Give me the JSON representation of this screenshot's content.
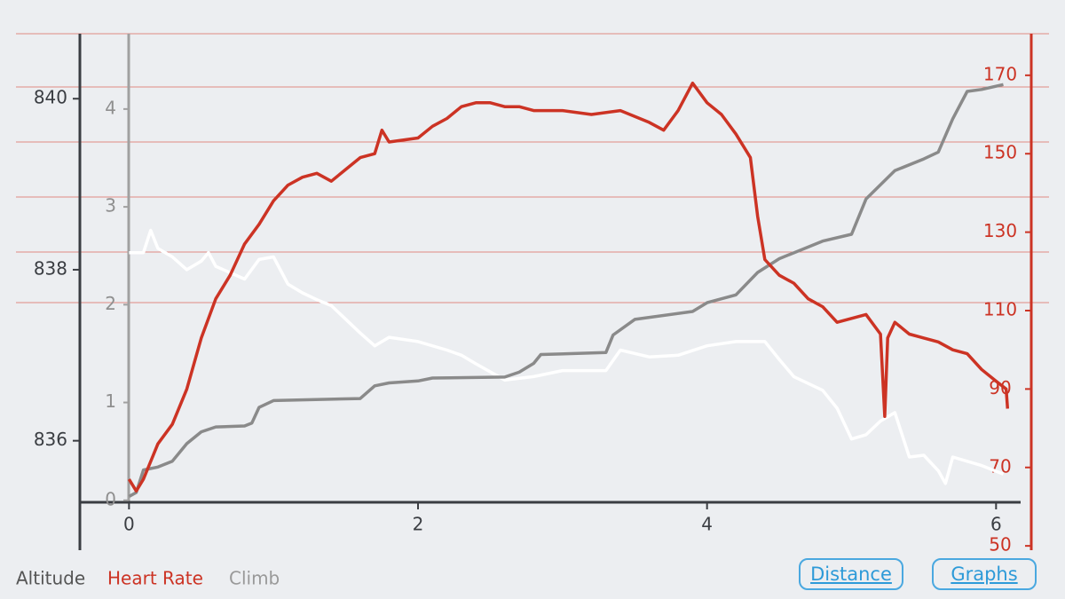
{
  "chart_data": {
    "type": "line",
    "xlim": [
      -0.34,
      6.17
    ],
    "xticks": [
      0,
      2,
      4,
      6
    ],
    "ylim": [
      834.72,
      840.76
    ],
    "yticks": [
      836,
      838,
      840
    ],
    "y2lim": [
      48.9,
      180.6
    ],
    "y2ticks": [
      50,
      70,
      90,
      110,
      130,
      150,
      170
    ],
    "y3lim": [
      -0.51,
      4.77
    ],
    "y3ticks": [
      0,
      1,
      2,
      3,
      4
    ],
    "series": [
      {
        "name": "Altitude",
        "color": "#ffffff",
        "axis": "y",
        "x": [
          0,
          0.1,
          0.15,
          0.2,
          0.3,
          0.4,
          0.5,
          0.55,
          0.6,
          0.8,
          0.9,
          1.0,
          1.1,
          1.2,
          1.3,
          1.4,
          1.5,
          1.6,
          1.7,
          1.8,
          2.0,
          2.2,
          2.3,
          2.4,
          2.6,
          2.8,
          3.0,
          3.3,
          3.4,
          3.6,
          3.8,
          4.0,
          4.2,
          4.4,
          4.5,
          4.6,
          4.8,
          4.9,
          5.0,
          5.1,
          5.2,
          5.3,
          5.4,
          5.5,
          5.6,
          5.65,
          5.7,
          5.8,
          5.9,
          6.05
        ],
        "values": [
          838.2,
          838.2,
          838.46,
          838.25,
          838.15,
          838.0,
          838.1,
          838.2,
          838.04,
          837.89,
          838.12,
          838.15,
          837.83,
          837.73,
          837.65,
          837.58,
          837.42,
          837.26,
          837.11,
          837.21,
          837.16,
          837.06,
          837.0,
          836.9,
          836.71,
          836.75,
          836.82,
          836.82,
          837.06,
          836.98,
          837.0,
          837.11,
          837.16,
          837.16,
          836.95,
          836.75,
          836.59,
          836.38,
          836.02,
          836.07,
          836.23,
          836.33,
          835.81,
          835.83,
          835.65,
          835.5,
          835.81,
          835.76,
          835.71,
          835.61
        ]
      },
      {
        "name": "Heart Rate",
        "color": "#cc3324",
        "axis": "y2",
        "x": [
          0,
          0.05,
          0.1,
          0.2,
          0.3,
          0.4,
          0.5,
          0.6,
          0.7,
          0.8,
          0.9,
          1.0,
          1.1,
          1.2,
          1.3,
          1.4,
          1.5,
          1.6,
          1.7,
          1.75,
          1.8,
          2.0,
          2.1,
          2.2,
          2.3,
          2.4,
          2.5,
          2.6,
          2.7,
          2.8,
          2.9,
          3.0,
          3.2,
          3.4,
          3.6,
          3.7,
          3.8,
          3.9,
          4.0,
          4.1,
          4.2,
          4.3,
          4.35,
          4.4,
          4.5,
          4.6,
          4.7,
          4.8,
          4.9,
          5.0,
          5.1,
          5.2,
          5.23,
          5.25,
          5.3,
          5.4,
          5.5,
          5.6,
          5.7,
          5.8,
          5.9,
          6.0,
          6.07,
          6.08
        ],
        "values": [
          67,
          64,
          67,
          76,
          81,
          90,
          103,
          113,
          119,
          127,
          132,
          138,
          142,
          144,
          145,
          143,
          146,
          149,
          150,
          156,
          153,
          154,
          157,
          159,
          162,
          163,
          163,
          162,
          162,
          161,
          161,
          161,
          160,
          161,
          158,
          156,
          161,
          168,
          163,
          160,
          155,
          149,
          134,
          123,
          119,
          117,
          113,
          111,
          107,
          108,
          109,
          104,
          83,
          103,
          107,
          104,
          103,
          102,
          100,
          99,
          95,
          92,
          90,
          85
        ]
      },
      {
        "name": "Climb",
        "color": "#8a8a8a",
        "axis": "y3",
        "x": [
          0,
          0.05,
          0.1,
          0.2,
          0.3,
          0.4,
          0.5,
          0.6,
          0.8,
          0.85,
          0.9,
          1.0,
          1.6,
          1.7,
          1.8,
          2.0,
          2.1,
          2.6,
          2.7,
          2.8,
          2.85,
          3.3,
          3.35,
          3.5,
          3.9,
          4.0,
          4.2,
          4.35,
          4.5,
          4.8,
          5.0,
          5.1,
          5.3,
          5.5,
          5.6,
          5.7,
          5.8,
          5.9,
          6.05
        ],
        "values": [
          0.04,
          0.08,
          0.31,
          0.34,
          0.4,
          0.58,
          0.7,
          0.75,
          0.76,
          0.79,
          0.95,
          1.02,
          1.04,
          1.17,
          1.2,
          1.22,
          1.25,
          1.26,
          1.31,
          1.4,
          1.49,
          1.51,
          1.69,
          1.85,
          1.93,
          2.02,
          2.1,
          2.33,
          2.47,
          2.65,
          2.72,
          3.08,
          3.37,
          3.49,
          3.56,
          3.9,
          4.18,
          4.2,
          4.25
        ]
      }
    ]
  },
  "buttons": [
    "Distance",
    "Graphs"
  ]
}
